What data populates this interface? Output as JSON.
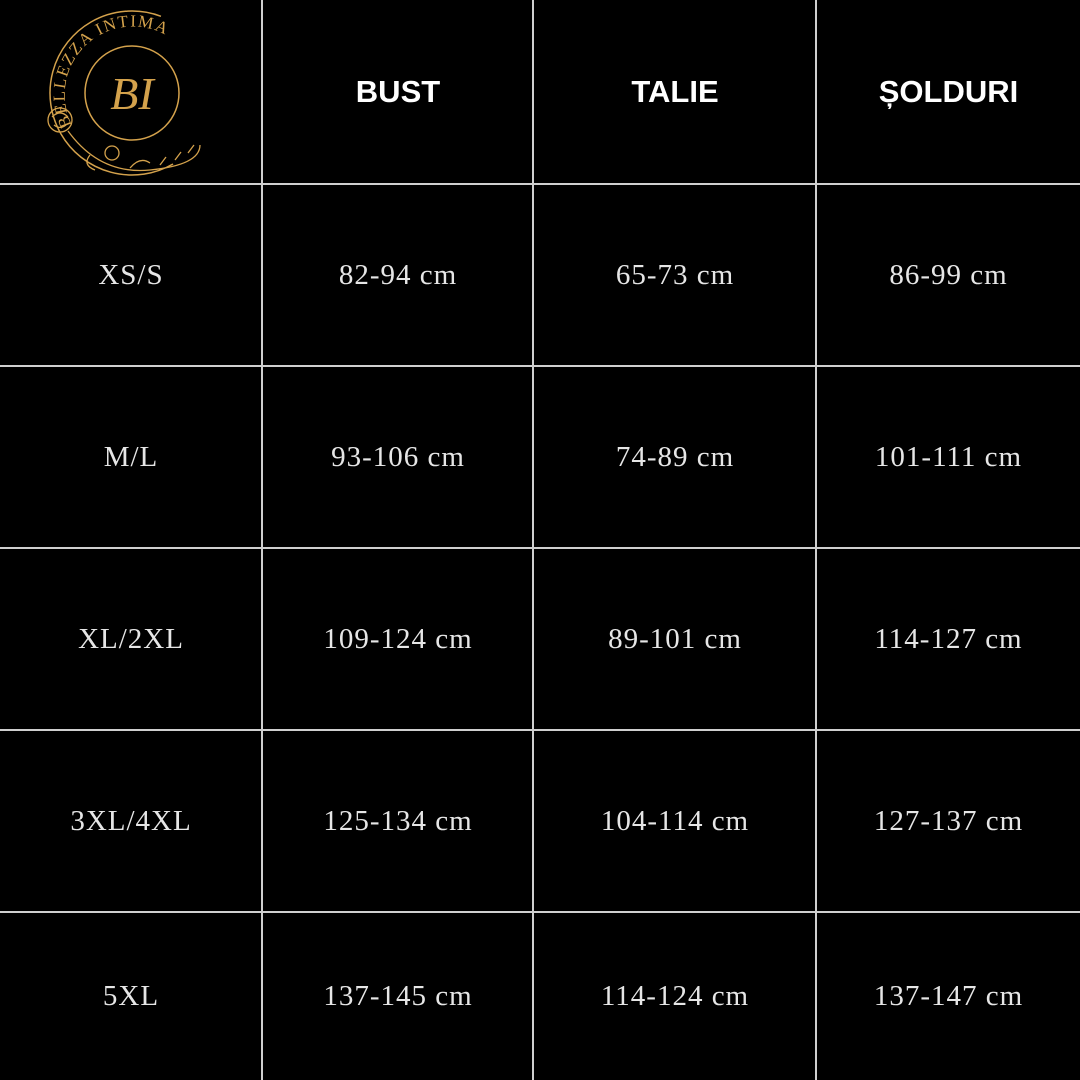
{
  "brand": {
    "name": "BELLEZZA INTIMA",
    "monogram": "BI",
    "color": "#d4a24c"
  },
  "table": {
    "headers": [
      "",
      "BUST",
      "TALIE",
      "ȘOLDURI"
    ],
    "rows": [
      [
        "XS/S",
        "82-94 cm",
        "65-73 cm",
        "86-99 cm"
      ],
      [
        "M/L",
        "93-106 cm",
        "74-89 cm",
        "101-111 cm"
      ],
      [
        "XL/2XL",
        "109-124 cm",
        "89-101 cm",
        "114-127 cm"
      ],
      [
        "3XL/4XL",
        "125-134 cm",
        "104-114 cm",
        "127-137 cm"
      ],
      [
        "5XL",
        "137-145 cm",
        "114-124 cm",
        "137-147 cm"
      ]
    ]
  }
}
